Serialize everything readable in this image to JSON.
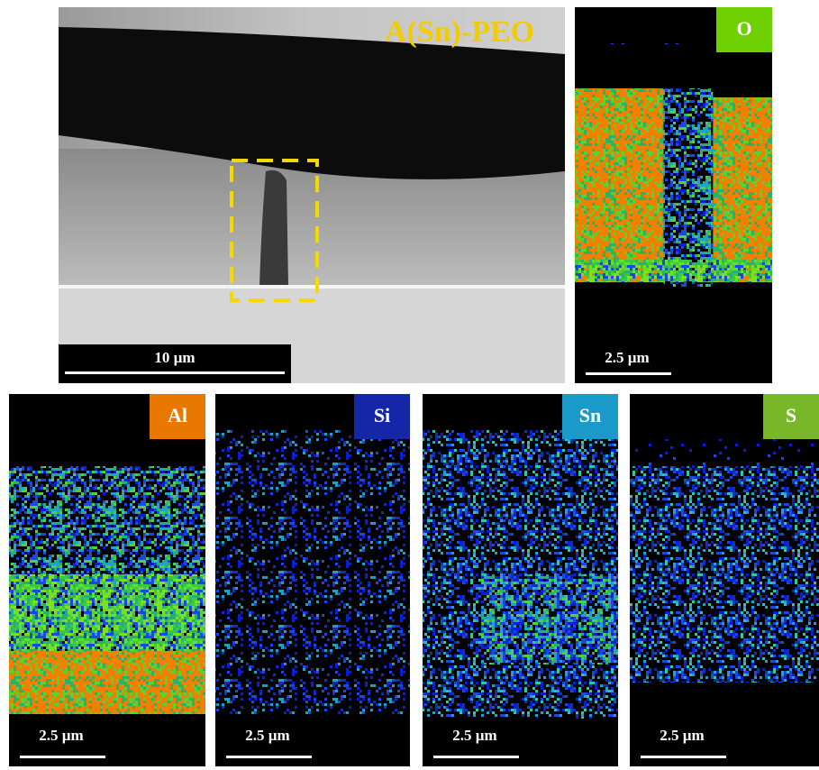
{
  "sem_panel": {
    "title": "A(Sn)-PEO",
    "scale_bar": "10 µm"
  },
  "maps": [
    {
      "element": "O",
      "scale_bar": "2.5 µm"
    },
    {
      "element": "Al",
      "scale_bar": "2.5 µm"
    },
    {
      "element": "Si",
      "scale_bar": "2.5 µm"
    },
    {
      "element": "Sn",
      "scale_bar": "2.5 µm"
    },
    {
      "element": "S",
      "scale_bar": "2.5 µm"
    }
  ]
}
